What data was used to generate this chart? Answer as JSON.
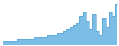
{
  "values": [
    2,
    2,
    2,
    2,
    2,
    3,
    3,
    3,
    3,
    3,
    4,
    4,
    4,
    4,
    5,
    5,
    5,
    6,
    6,
    7,
    8,
    9,
    10,
    11,
    14,
    16,
    12,
    8,
    15,
    7,
    5,
    13,
    9,
    16,
    14,
    20
  ],
  "line_color": "#4f9fd4",
  "fill_color": "#7bbde4",
  "background_color": "#ffffff",
  "ylim_min": 0
}
